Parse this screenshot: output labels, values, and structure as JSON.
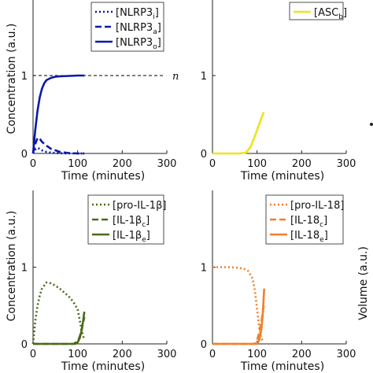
{
  "chart_data": [
    {
      "type": "line",
      "xlabel": "Time (minutes)",
      "ylabel": "Concentration (a.u.)",
      "xlim": [
        0,
        300
      ],
      "ylim": [
        0,
        2
      ],
      "xticks": [
        "0",
        "100",
        "200",
        "300"
      ],
      "yticks": [
        "0",
        "1"
      ],
      "legend_position": "top-right",
      "hline": {
        "y": 1,
        "label": "n",
        "style": "dashed",
        "color": "#000000"
      },
      "series": [
        {
          "name": "[NLRP3",
          "sub": "i",
          "suffix": "]",
          "color": "#0a1aa8",
          "dash": "dotted",
          "x": [
            0,
            5,
            10,
            15,
            20,
            30,
            40,
            50,
            60,
            80,
            100,
            115
          ],
          "y": [
            0.0,
            0.05,
            0.07,
            0.06,
            0.04,
            0.02,
            0.01,
            0.005,
            0.002,
            0.0,
            0.0,
            0.0
          ]
        },
        {
          "name": "[NLRP3",
          "sub": "a",
          "suffix": "]",
          "color": "#0a1aa8",
          "dash": "dashed",
          "x": [
            0,
            5,
            10,
            15,
            20,
            30,
            40,
            50,
            60,
            80,
            100,
            115
          ],
          "y": [
            0.0,
            0.12,
            0.2,
            0.19,
            0.15,
            0.1,
            0.06,
            0.04,
            0.02,
            0.005,
            0.0,
            0.0
          ]
        },
        {
          "name": "[NLRP3",
          "sub": "o",
          "suffix": "]",
          "color": "#0a1aa8",
          "dash": "solid",
          "x": [
            0,
            5,
            10,
            15,
            20,
            25,
            30,
            40,
            50,
            60,
            80,
            100,
            115
          ],
          "y": [
            0.0,
            0.3,
            0.55,
            0.72,
            0.83,
            0.9,
            0.94,
            0.97,
            0.985,
            0.99,
            0.995,
            1.0,
            1.0
          ]
        }
      ]
    },
    {
      "type": "line",
      "xlabel": "Time (minutes)",
      "ylabel": "",
      "xlim": [
        0,
        300
      ],
      "ylim": [
        0,
        2
      ],
      "xticks": [
        "0",
        "100",
        "200",
        "300"
      ],
      "yticks": [
        "0",
        "1"
      ],
      "legend_position": "top-right",
      "series": [
        {
          "name": "[ASC",
          "sub": "b",
          "suffix": "]",
          "color": "#f2e21a",
          "dash": "solid",
          "x": [
            0,
            60,
            75,
            85,
            95,
            105,
            115
          ],
          "y": [
            0.0,
            0.0,
            0.01,
            0.08,
            0.22,
            0.38,
            0.53
          ]
        }
      ]
    },
    {
      "type": "line",
      "xlabel": "Time (minutes)",
      "ylabel": "Concentration (a.u.)",
      "xlim": [
        0,
        300
      ],
      "ylim": [
        0,
        2
      ],
      "xticks": [
        "0",
        "100",
        "200",
        "300"
      ],
      "yticks": [
        "0",
        "1"
      ],
      "legend_position": "top-right",
      "series": [
        {
          "name": "[pro-IL-1β]",
          "sub": "",
          "suffix": "",
          "color": "#4b6a17",
          "dash": "dotted",
          "x": [
            0,
            5,
            10,
            15,
            20,
            30,
            40,
            50,
            60,
            70,
            80,
            90,
            100,
            105,
            110,
            115
          ],
          "y": [
            0.0,
            0.3,
            0.5,
            0.63,
            0.72,
            0.8,
            0.79,
            0.76,
            0.72,
            0.67,
            0.62,
            0.55,
            0.45,
            0.3,
            0.15,
            0.05
          ]
        },
        {
          "name": "[IL-1β",
          "sub": "c",
          "suffix": "]",
          "color": "#4b6a17",
          "dash": "dashed",
          "x": [
            0,
            90,
            100,
            105,
            110,
            115
          ],
          "y": [
            0.0,
            0.0,
            0.03,
            0.1,
            0.22,
            0.35
          ]
        },
        {
          "name": "[IL-1β",
          "sub": "e",
          "suffix": "]",
          "color": "#4b6a17",
          "dash": "solid",
          "x": [
            0,
            95,
            100,
            105,
            110,
            115
          ],
          "y": [
            0.0,
            0.0,
            0.02,
            0.08,
            0.2,
            0.42
          ]
        }
      ]
    },
    {
      "type": "line",
      "xlabel": "Time (minutes)",
      "ylabel": "",
      "xlim": [
        0,
        300
      ],
      "ylim": [
        0,
        2
      ],
      "xticks": [
        "0",
        "100",
        "200",
        "300"
      ],
      "yticks": [
        "0",
        "1"
      ],
      "legend_position": "top-right",
      "series": [
        {
          "name": "[pro-IL-18]",
          "sub": "",
          "suffix": "",
          "color": "#f27f2a",
          "dash": "dotted",
          "x": [
            0,
            20,
            40,
            60,
            70,
            80,
            90,
            95,
            100,
            105,
            110,
            115
          ],
          "y": [
            1.0,
            1.0,
            1.0,
            0.99,
            0.98,
            0.95,
            0.85,
            0.7,
            0.45,
            0.2,
            0.07,
            0.02
          ]
        },
        {
          "name": "[IL-18",
          "sub": "c",
          "suffix": "]",
          "color": "#f27f2a",
          "dash": "dashed",
          "x": [
            0,
            95,
            100,
            105,
            110,
            115
          ],
          "y": [
            0.0,
            0.0,
            0.05,
            0.15,
            0.3,
            0.5
          ]
        },
        {
          "name": "[IL-18",
          "sub": "e",
          "suffix": "]",
          "color": "#f27f2a",
          "dash": "solid",
          "x": [
            0,
            100,
            105,
            110,
            113,
            116
          ],
          "y": [
            0.0,
            0.0,
            0.05,
            0.2,
            0.4,
            0.72
          ]
        }
      ]
    }
  ],
  "right_axis_label": "Volume (a.u.)"
}
